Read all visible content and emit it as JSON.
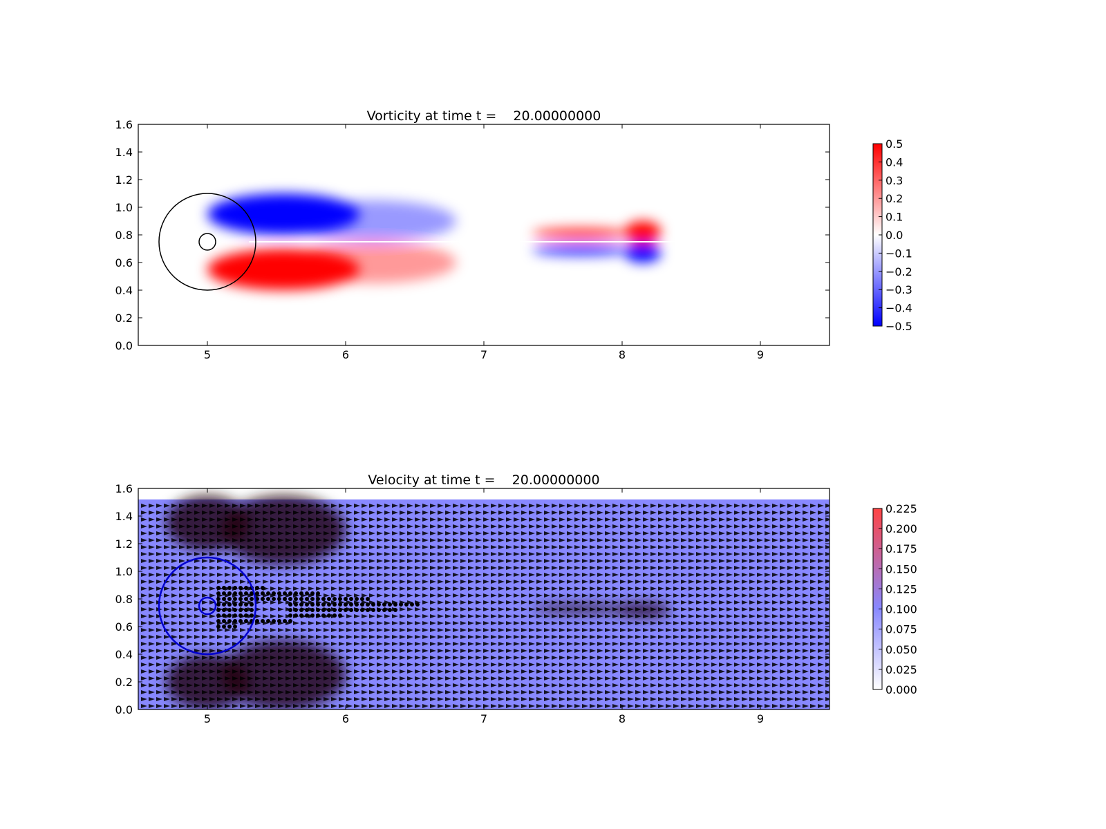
{
  "chart_data": [
    {
      "type": "heatmap",
      "title": "Vorticity at time t =    20.00000000",
      "xlabel": "",
      "ylabel": "",
      "xlim": [
        4.5,
        9.5
      ],
      "ylim": [
        0.0,
        1.6
      ],
      "xticks": [
        "5",
        "6",
        "7",
        "8",
        "9"
      ],
      "yticks": [
        "0.0",
        "0.2",
        "0.4",
        "0.6",
        "0.8",
        "1.0",
        "1.2",
        "1.4",
        "1.6"
      ],
      "colormap": "bwr",
      "colors": {
        "negative": "#0000ff",
        "zero": "#ffffff",
        "positive": "#ff0000"
      },
      "clim": [
        -0.5,
        0.5
      ],
      "colorbar_ticks": [
        "0.5",
        "0.4",
        "0.3",
        "0.2",
        "0.1",
        "0.0",
        "−0.1",
        "−0.2",
        "−0.3",
        "−0.4",
        "−0.5"
      ],
      "outlines": [
        {
          "shape": "circle",
          "cx": 5.0,
          "cy": 0.75,
          "r": 0.35,
          "color": "#000000"
        },
        {
          "shape": "circle",
          "cx": 5.0,
          "cy": 0.75,
          "r": 0.06,
          "color": "#000000"
        }
      ],
      "features": [
        {
          "kind": "blob",
          "cx": 5.55,
          "cy": 0.95,
          "rx": 0.55,
          "ry": 0.15,
          "value": -0.5
        },
        {
          "kind": "blob",
          "cx": 5.55,
          "cy": 0.55,
          "rx": 0.55,
          "ry": 0.15,
          "value": 0.5
        },
        {
          "kind": "blob",
          "cx": 6.2,
          "cy": 0.9,
          "rx": 0.6,
          "ry": 0.15,
          "value": -0.2
        },
        {
          "kind": "blob",
          "cx": 6.2,
          "cy": 0.6,
          "rx": 0.6,
          "ry": 0.15,
          "value": 0.2
        },
        {
          "kind": "blob",
          "cx": 8.15,
          "cy": 0.82,
          "rx": 0.13,
          "ry": 0.08,
          "value": 0.5
        },
        {
          "kind": "blob",
          "cx": 8.15,
          "cy": 0.67,
          "rx": 0.13,
          "ry": 0.07,
          "value": -0.5
        },
        {
          "kind": "blob",
          "cx": 7.7,
          "cy": 0.81,
          "rx": 0.35,
          "ry": 0.04,
          "value": 0.4
        },
        {
          "kind": "blob",
          "cx": 7.7,
          "cy": 0.69,
          "rx": 0.35,
          "ry": 0.04,
          "value": -0.4
        }
      ]
    },
    {
      "type": "heatmap",
      "title": "Velocity at time t =    20.00000000",
      "xlabel": "",
      "ylabel": "",
      "xlim": [
        4.5,
        9.5
      ],
      "ylim": [
        0.0,
        1.6
      ],
      "xticks": [
        "5",
        "6",
        "7",
        "8",
        "9"
      ],
      "yticks": [
        "0.0",
        "0.2",
        "0.4",
        "0.6",
        "0.8",
        "1.0",
        "1.2",
        "1.4",
        "1.6"
      ],
      "field_ymax": 1.52,
      "overlay": "quiver",
      "colormap": "white-blue-red",
      "colors": {
        "low": "#ffffff",
        "mid": "#8888ff",
        "high": "#ff4444",
        "arrows": "#000000",
        "markers": "#0000cc"
      },
      "clim": [
        0.0,
        0.23
      ],
      "background_speed": 0.1,
      "colorbar_ticks": [
        "0.225",
        "0.200",
        "0.175",
        "0.150",
        "0.125",
        "0.100",
        "0.075",
        "0.050",
        "0.025",
        "0.000"
      ],
      "outlines": [
        {
          "shape": "circle",
          "cx": 5.0,
          "cy": 0.75,
          "r": 0.35,
          "color": "#0000cc"
        },
        {
          "shape": "circle",
          "cx": 5.0,
          "cy": 0.75,
          "r": 0.06,
          "color": "#0000cc"
        }
      ]
    }
  ]
}
